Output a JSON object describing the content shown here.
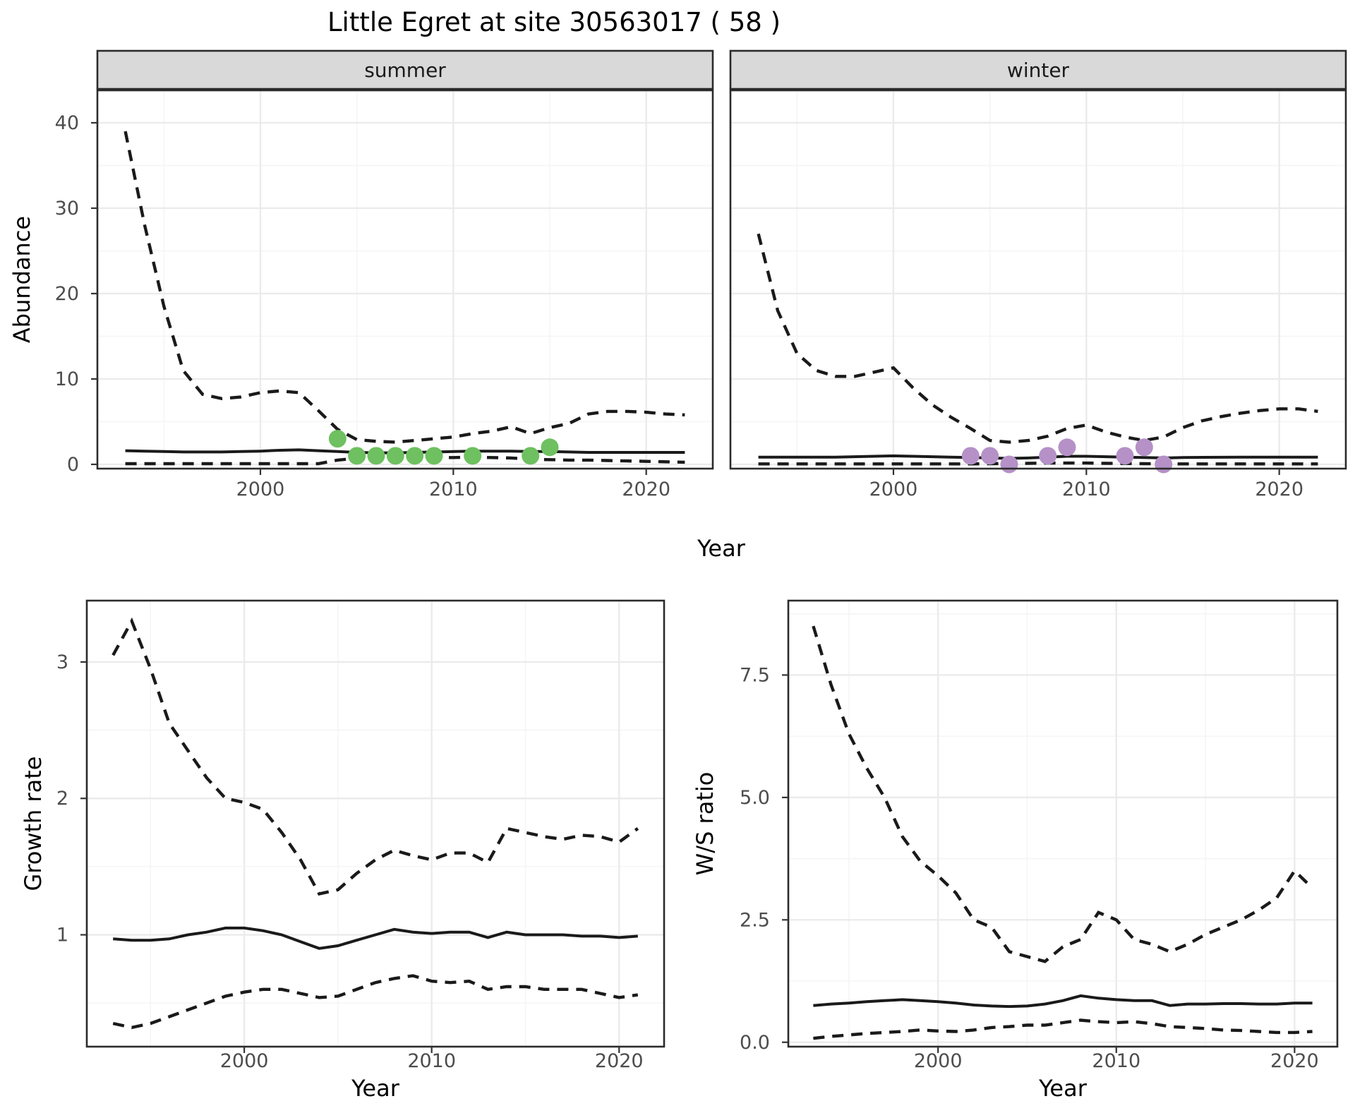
{
  "title": "Little Egret at site 30563017 ( 58 )",
  "style": {
    "line_color": "#1a1a1a",
    "grid_major": "#ebebeb",
    "grid_minor": "#f5f5f5",
    "strip_bg": "#d9d9d9",
    "panel_border": "#2b2b2b",
    "tick_color": "#333333",
    "tick_label_color": "#4d4d4d",
    "summer_point_color": "#6ec060",
    "winter_point_color": "#b591c7"
  },
  "chart_data": [
    {
      "id": "abundance",
      "type": "line",
      "xlabel": "Year",
      "ylabel": "Abundance",
      "xticks": {
        "values": [
          2000,
          2010,
          2020
        ],
        "labels": [
          "2000",
          "2010",
          "2020"
        ]
      },
      "yticks": {
        "values": [
          0,
          10,
          20,
          30,
          40
        ],
        "labels": [
          "0",
          "10",
          "20",
          "30",
          "40"
        ]
      },
      "x_minor": [
        1995,
        2005,
        2015
      ],
      "y_minor": [
        5,
        15,
        25,
        35
      ],
      "xlim": [
        1991.55,
        2023.45
      ],
      "ylim": [
        -0.5,
        43.8
      ],
      "grid": true,
      "legend": "none",
      "facets": [
        {
          "label": "summer",
          "x": [
            1993,
            1994,
            1995,
            1996,
            1997,
            1998,
            1999,
            2000,
            2001,
            2002,
            2003,
            2004,
            2005,
            2006,
            2007,
            2008,
            2009,
            2010,
            2011,
            2012,
            2013,
            2014,
            2015,
            2016,
            2017,
            2018,
            2019,
            2020,
            2021,
            2022
          ],
          "series": [
            {
              "name": "upper-ci",
              "style": "dashed",
              "values": [
                39,
                28,
                18.5,
                11,
                8.2,
                7.7,
                7.9,
                8.4,
                8.6,
                8.4,
                6.3,
                4.1,
                2.9,
                2.7,
                2.6,
                2.8,
                3.0,
                3.2,
                3.6,
                3.9,
                4.4,
                3.6,
                4.3,
                4.8,
                5.9,
                6.2,
                6.2,
                6.1,
                5.9,
                5.8
              ]
            },
            {
              "name": "median",
              "style": "solid",
              "values": [
                1.6,
                1.55,
                1.5,
                1.45,
                1.45,
                1.45,
                1.5,
                1.55,
                1.65,
                1.7,
                1.6,
                1.5,
                1.4,
                1.35,
                1.35,
                1.4,
                1.45,
                1.5,
                1.55,
                1.55,
                1.55,
                1.5,
                1.5,
                1.45,
                1.4,
                1.4,
                1.4,
                1.4,
                1.4,
                1.4
              ]
            },
            {
              "name": "lower-ci",
              "style": "dashed",
              "values": [
                0.08,
                0.08,
                0.08,
                0.08,
                0.08,
                0.08,
                0.08,
                0.08,
                0.08,
                0.08,
                0.08,
                0.5,
                0.7,
                0.75,
                0.8,
                0.8,
                0.8,
                0.8,
                0.85,
                0.8,
                0.75,
                0.6,
                0.55,
                0.5,
                0.5,
                0.45,
                0.4,
                0.35,
                0.3,
                0.25
              ]
            }
          ],
          "points": {
            "name": "observed-counts",
            "color": "#6ec060",
            "x": [
              2004,
              2005,
              2006,
              2007,
              2008,
              2009,
              2011,
              2014,
              2015
            ],
            "y": [
              3,
              1,
              1,
              1,
              1,
              1,
              1,
              1,
              2
            ]
          }
        },
        {
          "label": "winter",
          "x": [
            1993,
            1994,
            1995,
            1996,
            1997,
            1998,
            1999,
            2000,
            2001,
            2002,
            2003,
            2004,
            2005,
            2006,
            2007,
            2008,
            2009,
            2010,
            2011,
            2012,
            2013,
            2014,
            2015,
            2016,
            2017,
            2018,
            2019,
            2020,
            2021,
            2022
          ],
          "series": [
            {
              "name": "upper-ci",
              "style": "dashed",
              "values": [
                27,
                18,
                13,
                11,
                10.3,
                10.3,
                10.8,
                11.3,
                9,
                7,
                5.5,
                4.2,
                2.8,
                2.6,
                2.8,
                3.3,
                4.2,
                4.6,
                3.8,
                3.2,
                2.8,
                3.2,
                4.3,
                5.1,
                5.6,
                6.0,
                6.3,
                6.5,
                6.5,
                6.2
              ]
            },
            {
              "name": "median",
              "style": "solid",
              "values": [
                0.85,
                0.85,
                0.85,
                0.85,
                0.85,
                0.9,
                0.95,
                1.0,
                0.95,
                0.9,
                0.85,
                0.8,
                0.75,
                0.7,
                0.75,
                0.85,
                0.95,
                0.95,
                0.9,
                0.85,
                0.8,
                0.75,
                0.8,
                0.82,
                0.83,
                0.84,
                0.85,
                0.85,
                0.85,
                0.85
              ]
            },
            {
              "name": "lower-ci",
              "style": "dashed",
              "values": [
                0.05,
                0.05,
                0.05,
                0.05,
                0.05,
                0.05,
                0.05,
                0.05,
                0.05,
                0.05,
                0.05,
                0.05,
                0.08,
                0.1,
                0.12,
                0.15,
                0.15,
                0.15,
                0.12,
                0.1,
                0.08,
                0.05,
                0.05,
                0.05,
                0.05,
                0.05,
                0.05,
                0.05,
                0.05,
                0.05
              ]
            }
          ],
          "points": {
            "name": "observed-counts",
            "color": "#b591c7",
            "x": [
              2004,
              2005,
              2006,
              2008,
              2009,
              2012,
              2013,
              2014
            ],
            "y": [
              1,
              1,
              0,
              1,
              2,
              1,
              2,
              0
            ]
          }
        }
      ]
    },
    {
      "id": "growth-rate",
      "type": "line",
      "xlabel": "Year",
      "ylabel": "Growth rate",
      "xticks": {
        "values": [
          2000,
          2010,
          2020
        ],
        "labels": [
          "2000",
          "2010",
          "2020"
        ]
      },
      "yticks": {
        "values": [
          1,
          2,
          3
        ],
        "labels": [
          "1",
          "2",
          "3"
        ]
      },
      "x_minor": [
        1995,
        2005,
        2015
      ],
      "y_minor": [
        0.5,
        1.5,
        2.5
      ],
      "xlim": [
        1991.6,
        2022.4
      ],
      "ylim": [
        0.18,
        3.45
      ],
      "grid": true,
      "legend": "none",
      "x": [
        1993,
        1994,
        1995,
        1996,
        1997,
        1998,
        1999,
        2000,
        2001,
        2002,
        2003,
        2004,
        2005,
        2006,
        2007,
        2008,
        2009,
        2010,
        2011,
        2012,
        2013,
        2014,
        2015,
        2016,
        2017,
        2018,
        2019,
        2020,
        2021
      ],
      "series": [
        {
          "name": "upper-ci",
          "style": "dashed",
          "values": [
            3.05,
            3.3,
            2.95,
            2.55,
            2.35,
            2.15,
            2.0,
            1.97,
            1.92,
            1.75,
            1.55,
            1.3,
            1.33,
            1.45,
            1.55,
            1.62,
            1.58,
            1.55,
            1.6,
            1.6,
            1.53,
            1.78,
            1.75,
            1.72,
            1.7,
            1.73,
            1.72,
            1.68,
            1.78
          ]
        },
        {
          "name": "median",
          "style": "solid",
          "values": [
            0.97,
            0.96,
            0.96,
            0.97,
            1.0,
            1.02,
            1.05,
            1.05,
            1.03,
            1.0,
            0.95,
            0.9,
            0.92,
            0.96,
            1.0,
            1.04,
            1.02,
            1.01,
            1.02,
            1.02,
            0.98,
            1.02,
            1.0,
            1.0,
            1.0,
            0.99,
            0.99,
            0.98,
            0.99
          ]
        },
        {
          "name": "lower-ci",
          "style": "dashed",
          "values": [
            0.35,
            0.32,
            0.35,
            0.4,
            0.45,
            0.5,
            0.55,
            0.58,
            0.6,
            0.6,
            0.57,
            0.54,
            0.55,
            0.6,
            0.65,
            0.68,
            0.7,
            0.66,
            0.65,
            0.66,
            0.6,
            0.62,
            0.62,
            0.6,
            0.6,
            0.6,
            0.57,
            0.54,
            0.56
          ]
        }
      ]
    },
    {
      "id": "ws-ratio",
      "type": "line",
      "xlabel": "Year",
      "ylabel": "W/S ratio",
      "xticks": {
        "values": [
          2000,
          2010,
          2020
        ],
        "labels": [
          "2000",
          "2010",
          "2020"
        ]
      },
      "yticks": {
        "values": [
          0,
          2.5,
          5,
          7.5
        ],
        "labels": [
          "0.0",
          "2.5",
          "5.0",
          "7.5"
        ]
      },
      "x_minor": [
        1995,
        2005,
        2015
      ],
      "y_minor": [
        1.25,
        3.75,
        6.25,
        8.75
      ],
      "xlim": [
        1991.6,
        2022.4
      ],
      "ylim": [
        -0.09,
        9.02
      ],
      "grid": true,
      "legend": "none",
      "x": [
        1993,
        1994,
        1995,
        1996,
        1997,
        1998,
        1999,
        2000,
        2001,
        2002,
        2003,
        2004,
        2005,
        2006,
        2007,
        2008,
        2009,
        2010,
        2011,
        2012,
        2013,
        2014,
        2015,
        2016,
        2017,
        2018,
        2019,
        2020,
        2021
      ],
      "series": [
        {
          "name": "upper-ci",
          "style": "dashed",
          "values": [
            8.5,
            7.3,
            6.3,
            5.6,
            5.0,
            4.2,
            3.7,
            3.4,
            3.05,
            2.5,
            2.35,
            1.85,
            1.75,
            1.65,
            1.95,
            2.1,
            2.65,
            2.5,
            2.1,
            2.0,
            1.85,
            2.0,
            2.2,
            2.35,
            2.5,
            2.7,
            2.95,
            3.5,
            3.15
          ]
        },
        {
          "name": "median",
          "style": "solid",
          "values": [
            0.75,
            0.78,
            0.8,
            0.83,
            0.85,
            0.87,
            0.85,
            0.83,
            0.8,
            0.76,
            0.74,
            0.73,
            0.74,
            0.78,
            0.85,
            0.95,
            0.9,
            0.87,
            0.85,
            0.85,
            0.75,
            0.78,
            0.78,
            0.79,
            0.79,
            0.78,
            0.78,
            0.8,
            0.8
          ]
        },
        {
          "name": "lower-ci",
          "style": "dashed",
          "values": [
            0.08,
            0.12,
            0.15,
            0.18,
            0.2,
            0.22,
            0.25,
            0.23,
            0.22,
            0.25,
            0.3,
            0.32,
            0.35,
            0.35,
            0.4,
            0.45,
            0.42,
            0.4,
            0.42,
            0.38,
            0.32,
            0.3,
            0.28,
            0.25,
            0.24,
            0.22,
            0.2,
            0.2,
            0.22
          ]
        }
      ]
    }
  ]
}
